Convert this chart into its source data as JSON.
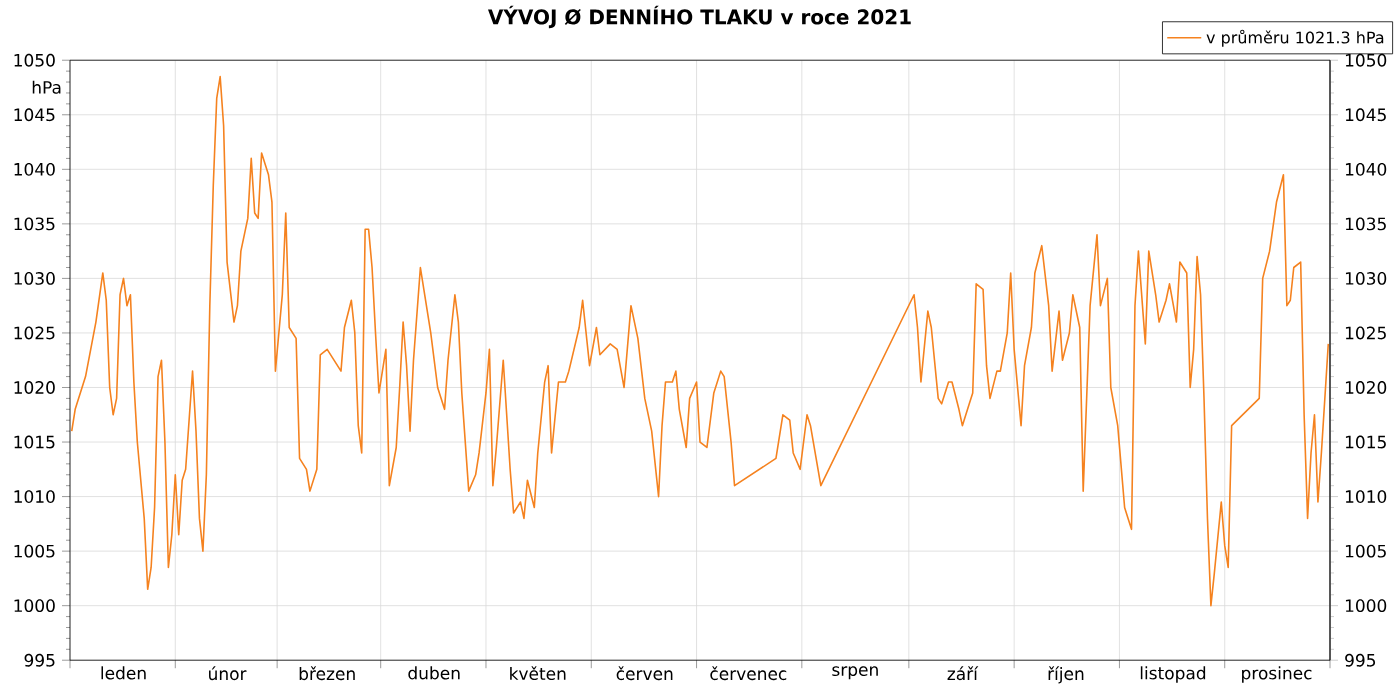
{
  "chart_data": {
    "type": "line",
    "title": "VÝVOJ Ø DENNÍHO TLAKU v roce 2021",
    "ylabel": "hPa",
    "categories": [
      null,
      null,
      null,
      null,
      null,
      null,
      null,
      null,
      null,
      null,
      null,
      null,
      null,
      null,
      null,
      "leden",
      null,
      null,
      null,
      null,
      null,
      null,
      null,
      null,
      null,
      null,
      null,
      null,
      null,
      null,
      null,
      null,
      null,
      null,
      null,
      null,
      null,
      null,
      null,
      null,
      null,
      null,
      null,
      null,
      null,
      "únor",
      null,
      null,
      null,
      null,
      null,
      null,
      null,
      null,
      null,
      null,
      null,
      null,
      null,
      null,
      null,
      null,
      null,
      null,
      null,
      null,
      null,
      null,
      null,
      null,
      null,
      null,
      null,
      null,
      "březen",
      null,
      null,
      null,
      null,
      null,
      null,
      null,
      null,
      null,
      null,
      null,
      null,
      null,
      null,
      null,
      null,
      null,
      null,
      null,
      null,
      null,
      null,
      null,
      null,
      null,
      null,
      null,
      null,
      null,
      null,
      "duben",
      null,
      null,
      null,
      null,
      null,
      null,
      null,
      null,
      null,
      null,
      null,
      null,
      null,
      null,
      null,
      null,
      null,
      null,
      null,
      null,
      null,
      null,
      null,
      null,
      null,
      null,
      null,
      null,
      null,
      "květen",
      null,
      null,
      null,
      null,
      null,
      null,
      null,
      null,
      null,
      null,
      null,
      null,
      null,
      null,
      null,
      null,
      null,
      null,
      null,
      null,
      null,
      null,
      null,
      null,
      null,
      null,
      null,
      null,
      null,
      null,
      "červen",
      null,
      null,
      null,
      null,
      null,
      null,
      null,
      null,
      null,
      null,
      null,
      null,
      null,
      null,
      null,
      null,
      null,
      null,
      null,
      null,
      null,
      null,
      null,
      null,
      null,
      null,
      null,
      null,
      null,
      "červenec",
      null,
      null,
      null,
      null,
      null,
      null,
      null,
      null,
      null,
      null,
      null,
      null,
      null,
      null,
      null,
      null,
      null,
      null,
      null,
      null,
      null,
      null,
      null,
      null,
      null,
      null,
      null,
      null,
      null,
      null,
      "srpen",
      null,
      null,
      null,
      null,
      null,
      null,
      null,
      null,
      null,
      null,
      null,
      null,
      null,
      null,
      null,
      null,
      null,
      null,
      null,
      null,
      null,
      null,
      null,
      null,
      null,
      null,
      null,
      null,
      null,
      null,
      "září",
      null,
      null,
      null,
      null,
      null,
      null,
      null,
      null,
      null,
      null,
      null,
      null,
      null,
      null,
      null,
      null,
      null,
      null,
      null,
      null,
      null,
      null,
      null,
      null,
      null,
      null,
      null,
      null,
      null,
      "říjen",
      null,
      null,
      null,
      null,
      null,
      null,
      null,
      null,
      null,
      null,
      null,
      null,
      null,
      null,
      null,
      null,
      null,
      null,
      null,
      null,
      null,
      null,
      null,
      null,
      null,
      null,
      null,
      null,
      null,
      null,
      "listopad",
      null,
      null,
      null,
      null,
      null,
      null,
      null,
      null,
      null,
      null,
      null,
      null,
      null,
      null,
      null,
      null,
      null,
      null,
      null,
      null,
      null,
      null,
      null,
      null,
      null,
      null,
      null,
      null,
      null,
      "prosinec",
      null,
      null,
      null,
      null,
      null,
      null,
      null,
      null,
      null,
      null,
      null,
      null,
      null,
      null,
      null
    ],
    "series": [
      {
        "name": "v průměru 1021.3 hPa",
        "color": "#f5821f",
        "values": [
          1016,
          1018,
          null,
          null,
          1021,
          null,
          null,
          1026,
          null,
          1030.5,
          1028,
          1020,
          1017.5,
          1019,
          1028.5,
          1030,
          1027.5,
          1028.5,
          1020.5,
          1015,
          null,
          1008,
          1001.5,
          1003.5,
          1009,
          1021,
          1022.5,
          1015,
          1003.5,
          1006.5,
          1012,
          1006.5,
          1011.5,
          1012.5,
          1017,
          1021.5,
          1016,
          1008,
          1005,
          1012,
          1027.5,
          1038.5,
          1046.5,
          1048.5,
          1044,
          1031.5,
          null,
          1026,
          1027.5,
          1032.5,
          null,
          1035.5,
          1041,
          1036,
          1035.5,
          1041.5,
          null,
          1039.5,
          1037,
          1021.5,
          null,
          1028.5,
          1036,
          1025.5,
          null,
          1024.5,
          1013.5,
          null,
          1012.5,
          1010.5,
          null,
          1012.5,
          1023,
          null,
          1023.5,
          null,
          null,
          null,
          1021.5,
          1025.5,
          null,
          1028,
          1025,
          1016.5,
          1014,
          1034.5,
          1034.5,
          1031,
          1025,
          1019.5,
          1021.5,
          1023.5,
          1011,
          null,
          1014.5,
          1020,
          1026,
          1022,
          1016,
          1022.5,
          null,
          1031,
          1029,
          null,
          1025,
          null,
          1020,
          null,
          1018,
          1022.5,
          null,
          1028.5,
          1026,
          1019.5,
          null,
          1010.5,
          null,
          1012,
          1014,
          null,
          1019.5,
          1023.5,
          1011,
          1014.5,
          null,
          1022.5,
          null,
          1012.5,
          1008.5,
          null,
          1009.5,
          1008,
          1011.5,
          null,
          1009,
          1014,
          null,
          1020.5,
          1022,
          1014,
          null,
          1020.5,
          null,
          1020.5,
          1021.5,
          null,
          null,
          1025.5,
          1028,
          null,
          1022,
          null,
          1025.5,
          1023,
          null,
          null,
          1024,
          null,
          1023.5,
          null,
          1020,
          null,
          1027.5,
          null,
          1024.5,
          null,
          1019,
          null,
          1016,
          null,
          1010,
          1016.5,
          1020.5,
          null,
          1020.5,
          1021.5,
          1018,
          null,
          1014.5,
          1019,
          null,
          1020.5,
          1015,
          null,
          1014.5,
          null,
          1019.5,
          null,
          1021.5,
          1021,
          null,
          1015,
          1011,
          null,
          null,
          null,
          null,
          null,
          null,
          null,
          null,
          null,
          null,
          null,
          1013.5,
          null,
          1017.5,
          null,
          1017,
          1014,
          null,
          1012.5,
          null,
          1017.5,
          1016.5,
          null,
          null,
          1011,
          null,
          null,
          null,
          null,
          null,
          null,
          null,
          null,
          null,
          null,
          null,
          null,
          null,
          null,
          null,
          null,
          null,
          null,
          null,
          null,
          null,
          null,
          null,
          null,
          null,
          null,
          1028.5,
          1025.5,
          1020.5,
          null,
          1027,
          1025.5,
          null,
          1019,
          1018.5,
          null,
          1020.5,
          1020.5,
          null,
          1018,
          1016.5,
          null,
          1018.5,
          1019.5,
          1029.5,
          null,
          1029,
          1022,
          1019,
          null,
          1021.5,
          1021.5,
          null,
          1025,
          1030.5,
          1023.5,
          null,
          1016.5,
          1022,
          null,
          1025.5,
          1030.5,
          null,
          1033,
          null,
          1027.5,
          1021.5,
          null,
          1027,
          1022.5,
          null,
          1025,
          1028.5,
          null,
          1025.5,
          1010.5,
          null,
          1027.5,
          null,
          1034,
          1027.5,
          null,
          1030,
          1020,
          null,
          1016.5,
          null,
          1009,
          1008,
          1007,
          1027.5,
          1032.5,
          null,
          1024,
          1032.5,
          null,
          1028.5,
          1026,
          null,
          1028,
          1029.5,
          null,
          1026,
          1031.5,
          null,
          1030.5,
          1020,
          1023.5,
          1032,
          1028.5,
          1019,
          1008,
          1000,
          1003,
          null,
          1009.5,
          1005.5,
          1003.5,
          1016.5,
          null,
          null,
          null,
          null,
          null,
          null,
          null,
          1019,
          1030,
          null,
          1032.5,
          null,
          1037,
          null,
          1039.5,
          1027.5,
          1028,
          1031,
          null,
          1031.5,
          1017.5,
          1008,
          1014,
          1017.5,
          1009.5,
          1014,
          1019,
          1024
        ]
      }
    ],
    "ylim": [
      995,
      1050
    ],
    "yticks": [
      995,
      1000,
      1005,
      1010,
      1015,
      1020,
      1025,
      1030,
      1035,
      1040,
      1045,
      1050
    ],
    "y2lim": [
      995,
      1050
    ],
    "y2ticks": [
      995,
      1000,
      1005,
      1010,
      1015,
      1020,
      1025,
      1030,
      1035,
      1040,
      1045,
      1050
    ],
    "grid": true,
    "legend": "top right",
    "marker": "none",
    "line_style": "solid"
  }
}
